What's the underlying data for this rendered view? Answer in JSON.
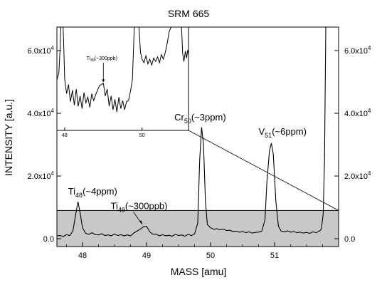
{
  "chart_data": {
    "type": "line",
    "title": "SRM 665",
    "xlabel": "MASS [amu]",
    "ylabel": "INTENSITY [a.u.]",
    "xlim": [
      47.6,
      52.0
    ],
    "ylim": [
      -2500,
      67500
    ],
    "x_ticks": [
      {
        "value": 48,
        "label": "48"
      },
      {
        "value": 49,
        "label": "49"
      },
      {
        "value": 50,
        "label": "50"
      },
      {
        "value": 51,
        "label": "51"
      }
    ],
    "y_ticks": [
      {
        "value": 0,
        "mantissa": "0.0",
        "exponent": ""
      },
      {
        "value": 20000,
        "mantissa": "2.0x10",
        "exponent": "4"
      },
      {
        "value": 40000,
        "mantissa": "4.0x10",
        "exponent": "4"
      },
      {
        "value": 60000,
        "mantissa": "6.0x10",
        "exponent": "4"
      }
    ],
    "grid": false,
    "series": [
      {
        "color": "#000000",
        "points": [
          [
            47.6,
            900
          ],
          [
            47.65,
            1000
          ],
          [
            47.7,
            700
          ],
          [
            47.75,
            1300
          ],
          [
            47.8,
            1000
          ],
          [
            47.85,
            2500
          ],
          [
            47.9,
            8500
          ],
          [
            47.93,
            11800
          ],
          [
            47.96,
            8500
          ],
          [
            48.0,
            3500
          ],
          [
            48.05,
            1700
          ],
          [
            48.1,
            1400
          ],
          [
            48.15,
            1900
          ],
          [
            48.2,
            1300
          ],
          [
            48.25,
            1200
          ],
          [
            48.3,
            1600
          ],
          [
            48.35,
            1000
          ],
          [
            48.4,
            1200
          ],
          [
            48.45,
            900
          ],
          [
            48.5,
            1500
          ],
          [
            48.55,
            1000
          ],
          [
            48.6,
            1300
          ],
          [
            48.65,
            900
          ],
          [
            48.7,
            1200
          ],
          [
            48.75,
            900
          ],
          [
            48.8,
            1800
          ],
          [
            48.85,
            2400
          ],
          [
            48.9,
            3000
          ],
          [
            48.95,
            3800
          ],
          [
            49.0,
            4000
          ],
          [
            49.05,
            2200
          ],
          [
            49.1,
            1400
          ],
          [
            49.15,
            1500
          ],
          [
            49.2,
            900
          ],
          [
            49.25,
            1300
          ],
          [
            49.3,
            900
          ],
          [
            49.35,
            1100
          ],
          [
            49.4,
            800
          ],
          [
            49.45,
            1400
          ],
          [
            49.5,
            1000
          ],
          [
            49.55,
            1200
          ],
          [
            49.6,
            800
          ],
          [
            49.65,
            1400
          ],
          [
            49.7,
            1000
          ],
          [
            49.75,
            1500
          ],
          [
            49.8,
            5000
          ],
          [
            49.83,
            25000
          ],
          [
            49.86,
            35500
          ],
          [
            49.89,
            30000
          ],
          [
            49.92,
            12000
          ],
          [
            49.95,
            4500
          ],
          [
            50.0,
            3500
          ],
          [
            50.05,
            3000
          ],
          [
            50.1,
            3200
          ],
          [
            50.15,
            2800
          ],
          [
            50.2,
            3100
          ],
          [
            50.25,
            2600
          ],
          [
            50.3,
            2700
          ],
          [
            50.35,
            2300
          ],
          [
            50.4,
            2400
          ],
          [
            50.45,
            2100
          ],
          [
            50.5,
            2300
          ],
          [
            50.55,
            1900
          ],
          [
            50.6,
            2200
          ],
          [
            50.65,
            1800
          ],
          [
            50.7,
            2000
          ],
          [
            50.75,
            2100
          ],
          [
            50.8,
            2400
          ],
          [
            50.85,
            6000
          ],
          [
            50.88,
            18000
          ],
          [
            50.92,
            28000
          ],
          [
            50.95,
            30500
          ],
          [
            50.98,
            27000
          ],
          [
            51.02,
            12000
          ],
          [
            51.06,
            4000
          ],
          [
            51.1,
            2500
          ],
          [
            51.15,
            2200
          ],
          [
            51.2,
            2500
          ],
          [
            51.25,
            2100
          ],
          [
            51.3,
            2300
          ],
          [
            51.35,
            1900
          ],
          [
            51.4,
            2100
          ],
          [
            51.45,
            1800
          ],
          [
            51.5,
            2000
          ],
          [
            51.55,
            1700
          ],
          [
            51.6,
            2200
          ],
          [
            51.65,
            1900
          ],
          [
            51.7,
            2400
          ],
          [
            51.73,
            3000
          ],
          [
            51.76,
            8000
          ],
          [
            51.78,
            25000
          ],
          [
            51.8,
            67500
          ]
        ]
      }
    ],
    "shaded_region": {
      "y_from": -2500,
      "y_to": 9000,
      "color": "#c8c8c8"
    },
    "annotations": [
      {
        "text": "Ti",
        "sub": "48",
        "rest": "(~4ppm)",
        "x": 47.93,
        "y": 11800
      },
      {
        "text": "Ti",
        "sub": "49",
        "rest": "(~300ppb)",
        "x": 48.95,
        "y": 4000
      },
      {
        "text": "Cr",
        "sub": "50",
        "rest": "(~3ppm)",
        "x": 49.86,
        "y": 35500
      },
      {
        "text": "V",
        "sub": "51",
        "rest": "(~6ppm)",
        "x": 50.95,
        "y": 30500
      }
    ],
    "inset": {
      "xlim": [
        47.8,
        51.2
      ],
      "ylim": [
        0,
        9000
      ],
      "x_ticks": [
        {
          "value": 48,
          "label": "48"
        },
        {
          "value": 50,
          "label": "50"
        }
      ],
      "annotation": {
        "text": "Ti",
        "sub": "49",
        "rest": "(~300ppb)",
        "x": 49.0,
        "y": 4000
      },
      "points": [
        [
          47.8,
          4400
        ],
        [
          47.85,
          5000
        ],
        [
          47.88,
          7000
        ],
        [
          47.9,
          9000
        ],
        [
          47.96,
          9000
        ],
        [
          47.98,
          7000
        ],
        [
          48.0,
          4500
        ],
        [
          48.05,
          3200
        ],
        [
          48.1,
          4000
        ],
        [
          48.15,
          2500
        ],
        [
          48.2,
          3500
        ],
        [
          48.25,
          2200
        ],
        [
          48.3,
          3600
        ],
        [
          48.35,
          2100
        ],
        [
          48.4,
          3000
        ],
        [
          48.45,
          1900
        ],
        [
          48.5,
          3300
        ],
        [
          48.55,
          2400
        ],
        [
          48.6,
          2900
        ],
        [
          48.65,
          2000
        ],
        [
          48.7,
          3200
        ],
        [
          48.75,
          2600
        ],
        [
          48.8,
          3100
        ],
        [
          48.85,
          3500
        ],
        [
          48.9,
          3900
        ],
        [
          48.95,
          4000
        ],
        [
          49.0,
          4100
        ],
        [
          49.05,
          3000
        ],
        [
          49.1,
          3600
        ],
        [
          49.15,
          2100
        ],
        [
          49.2,
          3000
        ],
        [
          49.25,
          1800
        ],
        [
          49.3,
          2700
        ],
        [
          49.35,
          1600
        ],
        [
          49.4,
          2900
        ],
        [
          49.45,
          1900
        ],
        [
          49.5,
          2600
        ],
        [
          49.55,
          1800
        ],
        [
          49.6,
          2500
        ],
        [
          49.65,
          2600
        ],
        [
          49.7,
          3400
        ],
        [
          49.75,
          4400
        ],
        [
          49.8,
          9000
        ],
        [
          49.92,
          9000
        ],
        [
          49.96,
          6800
        ],
        [
          50.0,
          6200
        ],
        [
          50.05,
          5900
        ],
        [
          50.1,
          6500
        ],
        [
          50.15,
          5800
        ],
        [
          50.2,
          6200
        ],
        [
          50.25,
          5700
        ],
        [
          50.3,
          6300
        ],
        [
          50.35,
          6000
        ],
        [
          50.4,
          6400
        ],
        [
          50.45,
          5900
        ],
        [
          50.5,
          6600
        ],
        [
          50.55,
          6200
        ],
        [
          50.6,
          6800
        ],
        [
          50.65,
          7600
        ],
        [
          50.7,
          8600
        ],
        [
          50.75,
          9000
        ],
        [
          51.02,
          9000
        ],
        [
          51.05,
          6700
        ],
        [
          51.08,
          6000
        ],
        [
          51.12,
          6900
        ],
        [
          51.15,
          6300
        ],
        [
          51.18,
          7000
        ],
        [
          51.2,
          6600
        ]
      ]
    }
  }
}
